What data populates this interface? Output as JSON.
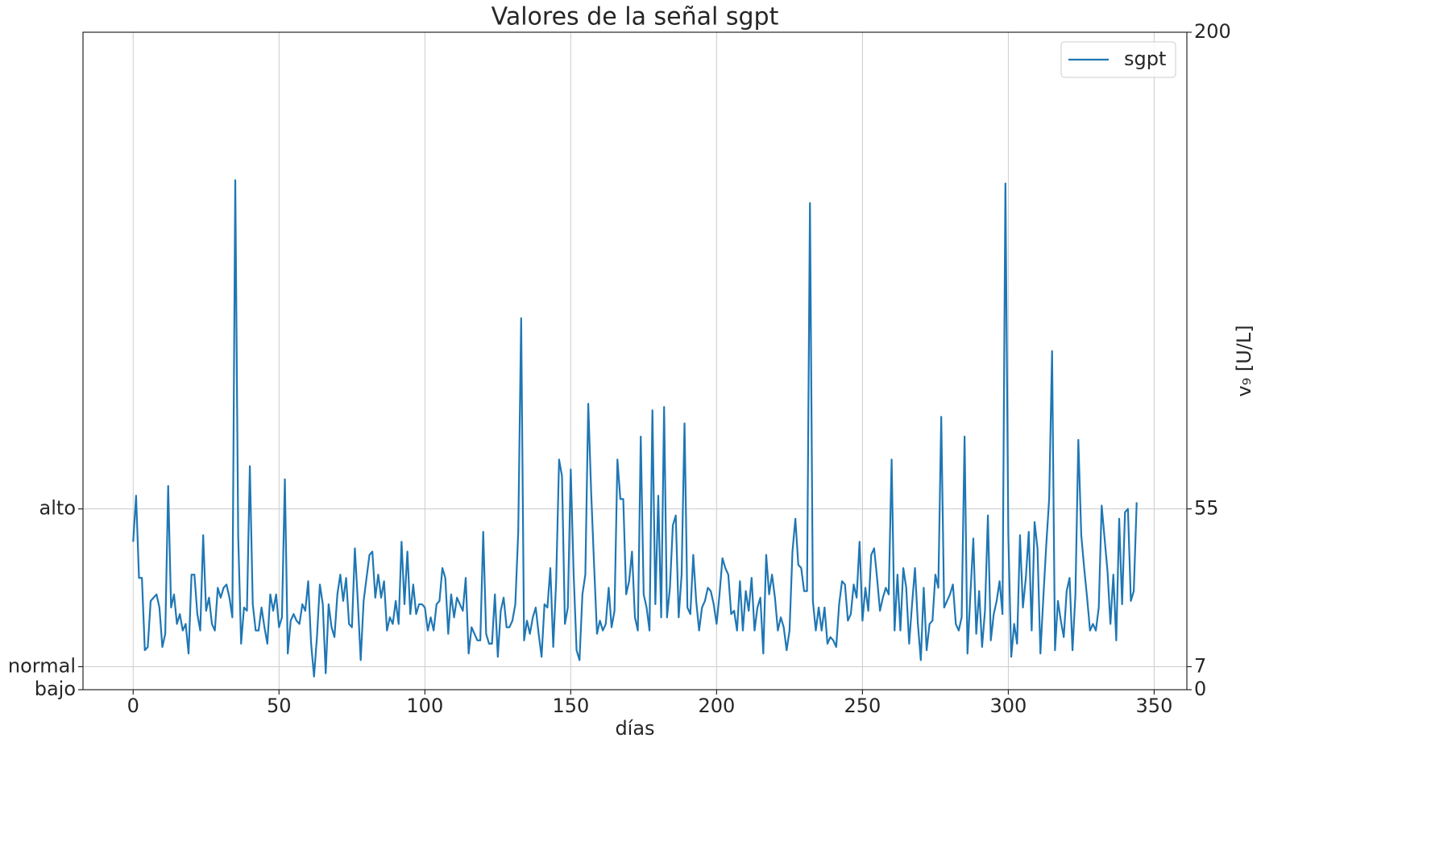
{
  "chart_data": {
    "type": "line",
    "title": "Valores de la señal sgpt",
    "xlabel": "días",
    "y2label": "v₉ [U/L]",
    "x": [
      0,
      1,
      2,
      3,
      4,
      5,
      6,
      7,
      8,
      9,
      10,
      11,
      12,
      13,
      14,
      15,
      16,
      17,
      18,
      19,
      20,
      21,
      22,
      23,
      24,
      25,
      26,
      27,
      28,
      29,
      30,
      31,
      32,
      33,
      34,
      35,
      36,
      37,
      38,
      39,
      40,
      41,
      42,
      43,
      44,
      45,
      46,
      47,
      48,
      49,
      50,
      51,
      52,
      53,
      54,
      55,
      56,
      57,
      58,
      59,
      60,
      61,
      62,
      63,
      64,
      65,
      66,
      67,
      68,
      69,
      70,
      71,
      72,
      73,
      74,
      75,
      76,
      77,
      78,
      79,
      80,
      81,
      82,
      83,
      84,
      85,
      86,
      87,
      88,
      89,
      90,
      91,
      92,
      93,
      94,
      95,
      96,
      97,
      98,
      99,
      100,
      101,
      102,
      103,
      104,
      105,
      106,
      107,
      108,
      109,
      110,
      111,
      112,
      113,
      114,
      115,
      116,
      117,
      118,
      119,
      120,
      121,
      122,
      123,
      124,
      125,
      126,
      127,
      128,
      129,
      130,
      131,
      132,
      133,
      134,
      135,
      136,
      137,
      138,
      139,
      140,
      141,
      142,
      143,
      144,
      145,
      146,
      147,
      148,
      149,
      150,
      151,
      152,
      153,
      154,
      155,
      156,
      157,
      158,
      159,
      160,
      161,
      162,
      163,
      164,
      165,
      166,
      167,
      168,
      169,
      170,
      171,
      172,
      173,
      174,
      175,
      176,
      177,
      178,
      179,
      180,
      181,
      182,
      183,
      184,
      185,
      186,
      187,
      188,
      189,
      190,
      191,
      192,
      193,
      194,
      195,
      196,
      197,
      198,
      199,
      200,
      201,
      202,
      203,
      204,
      205,
      206,
      207,
      208,
      209,
      210,
      211,
      212,
      213,
      214,
      215,
      216,
      217,
      218,
      219,
      220,
      221,
      222,
      223,
      224,
      225,
      226,
      227,
      228,
      229,
      230,
      231,
      232,
      233,
      234,
      235,
      236,
      237,
      238,
      239,
      240,
      241,
      242,
      243,
      244,
      245,
      246,
      247,
      248,
      249,
      250,
      251,
      252,
      253,
      254,
      255,
      256,
      257,
      258,
      259,
      260,
      261,
      262,
      263,
      264,
      265,
      266,
      267,
      268,
      269,
      270,
      271,
      272,
      273,
      274,
      275,
      276,
      277,
      278,
      279,
      280,
      281,
      282,
      283,
      284,
      285,
      286,
      287,
      288,
      289,
      290,
      291,
      292,
      293,
      294,
      295,
      296,
      297,
      298,
      299,
      300,
      301,
      302,
      303,
      304,
      305,
      306,
      307,
      308,
      309,
      310,
      311,
      312,
      313,
      314,
      315,
      316,
      317,
      318,
      319,
      320,
      321,
      322,
      323,
      324,
      325,
      326,
      327,
      328,
      329,
      330,
      331,
      332,
      333,
      334,
      335,
      336,
      337,
      338,
      339,
      340,
      341,
      342,
      343,
      344
    ],
    "series": [
      {
        "name": "sgpt",
        "color": "#1f77b4",
        "axis": "y2",
        "values": [
          45,
          59,
          34,
          34,
          12,
          13,
          27,
          28,
          29,
          25,
          13,
          17,
          62,
          25,
          29,
          20,
          23,
          18,
          20,
          11,
          35,
          35,
          23,
          18,
          47,
          24,
          28,
          20,
          18,
          31,
          28,
          31,
          32,
          28,
          22,
          155,
          47,
          14,
          25,
          24,
          68,
          26,
          18,
          18,
          25,
          19,
          14,
          29,
          24,
          29,
          19,
          22,
          64,
          11,
          21,
          23,
          21,
          20,
          26,
          24,
          33,
          14,
          4,
          16,
          32,
          26,
          5,
          26,
          19,
          16,
          29,
          35,
          27,
          34,
          20,
          19,
          43,
          27,
          9,
          27,
          34,
          41,
          42,
          28,
          35,
          28,
          33,
          18,
          22,
          20,
          27,
          20,
          45,
          26,
          42,
          23,
          32,
          23,
          26,
          26,
          25,
          18,
          22,
          18,
          26,
          27,
          37,
          34,
          17,
          29,
          22,
          28,
          26,
          24,
          34,
          11,
          19,
          17,
          15,
          15,
          48,
          17,
          14,
          14,
          29,
          10,
          24,
          28,
          19,
          19,
          21,
          26,
          48,
          113,
          15,
          21,
          17,
          22,
          25,
          17,
          10,
          26,
          25,
          37,
          13,
          33,
          70,
          65,
          20,
          25,
          67,
          35,
          12,
          9,
          29,
          35,
          87,
          60,
          38,
          17,
          21,
          18,
          20,
          31,
          19,
          24,
          70,
          58,
          58,
          29,
          33,
          42,
          22,
          18,
          77,
          29,
          25,
          18,
          85,
          26,
          59,
          22,
          86,
          22,
          31,
          50,
          53,
          22,
          35,
          81,
          25,
          23,
          41,
          27,
          18,
          25,
          27,
          31,
          30,
          26,
          20,
          29,
          40,
          37,
          35,
          23,
          24,
          18,
          33,
          18,
          30,
          24,
          34,
          18,
          25,
          28,
          11,
          41,
          29,
          35,
          28,
          18,
          22,
          19,
          12,
          18,
          42,
          52,
          38,
          37,
          30,
          30,
          148,
          27,
          18,
          25,
          18,
          25,
          14,
          16,
          15,
          13,
          26,
          33,
          32,
          21,
          23,
          32,
          28,
          45,
          21,
          31,
          24,
          41,
          43,
          34,
          24,
          28,
          31,
          29,
          70,
          18,
          35,
          18,
          37,
          31,
          14,
          26,
          37,
          20,
          9,
          31,
          12,
          20,
          21,
          35,
          31,
          83,
          25,
          27,
          29,
          32,
          20,
          18,
          22,
          77,
          11,
          29,
          46,
          17,
          30,
          13,
          24,
          53,
          15,
          23,
          27,
          33,
          23,
          154,
          47,
          10,
          20,
          14,
          47,
          25,
          34,
          48,
          18,
          51,
          43,
          11,
          28,
          44,
          58,
          103,
          12,
          27,
          21,
          16,
          30,
          34,
          12,
          29,
          76,
          47,
          37,
          28,
          18,
          20,
          18,
          25,
          56,
          46,
          36,
          20,
          35,
          15,
          52,
          26,
          54,
          55,
          27,
          30,
          57
        ]
      }
    ],
    "xlim": [
      -17.2,
      361.2
    ],
    "xticks": [
      0,
      50,
      100,
      150,
      200,
      250,
      300,
      350
    ],
    "ylim": [
      0,
      200
    ],
    "yticks": [
      {
        "value": 0,
        "label": "bajo"
      },
      {
        "value": 7,
        "label": "normal"
      },
      {
        "value": 55,
        "label": "alto"
      }
    ],
    "y2lim": [
      0,
      200
    ],
    "y2ticks": [
      0,
      7,
      55,
      200
    ],
    "grid": true,
    "legend": "upper right"
  }
}
